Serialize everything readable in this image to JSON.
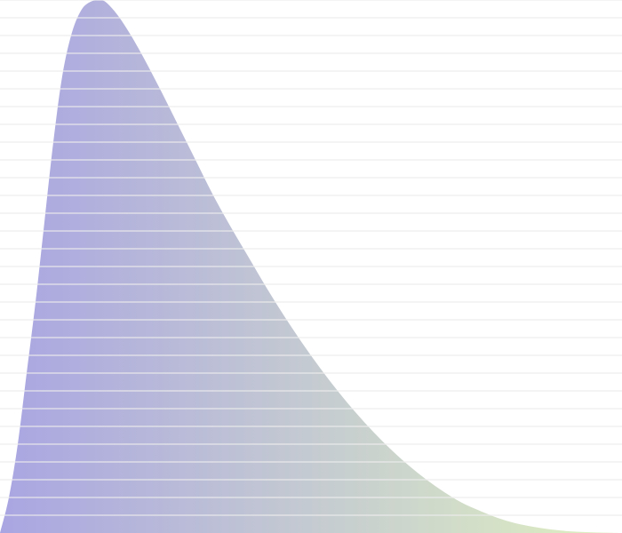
{
  "chart_data": {
    "type": "area",
    "title": "",
    "xlabel": "",
    "ylabel": "",
    "xlim": [
      0,
      700
    ],
    "ylim": [
      0,
      30
    ],
    "grid": true,
    "grid_y_step": 1,
    "legend": "none",
    "x": [
      0,
      10,
      20,
      30,
      40,
      50,
      60,
      70,
      80,
      90,
      100,
      115,
      130,
      145,
      160,
      180,
      200,
      220,
      240,
      260,
      280,
      300,
      320,
      340,
      360,
      380,
      400,
      420,
      440,
      460,
      480,
      500,
      520,
      540,
      560,
      580,
      600,
      620,
      640,
      660,
      680,
      700
    ],
    "y": [
      0.0,
      2.0,
      5.0,
      9.0,
      13.0,
      17.5,
      22.0,
      25.7,
      28.0,
      29.3,
      29.85,
      30.0,
      29.3,
      28.2,
      26.9,
      25.0,
      23.0,
      21.0,
      19.0,
      17.2,
      15.5,
      13.8,
      12.2,
      10.7,
      9.3,
      8.0,
      6.8,
      5.7,
      4.7,
      3.8,
      3.0,
      2.3,
      1.7,
      1.25,
      0.85,
      0.55,
      0.35,
      0.2,
      0.1,
      0.05,
      0.02,
      0.0
    ],
    "colors": {
      "gradient_start": "#a9a5e2",
      "gradient_end": "#e0f0c0",
      "grid": "#ececec",
      "background": "#ffffff"
    }
  }
}
